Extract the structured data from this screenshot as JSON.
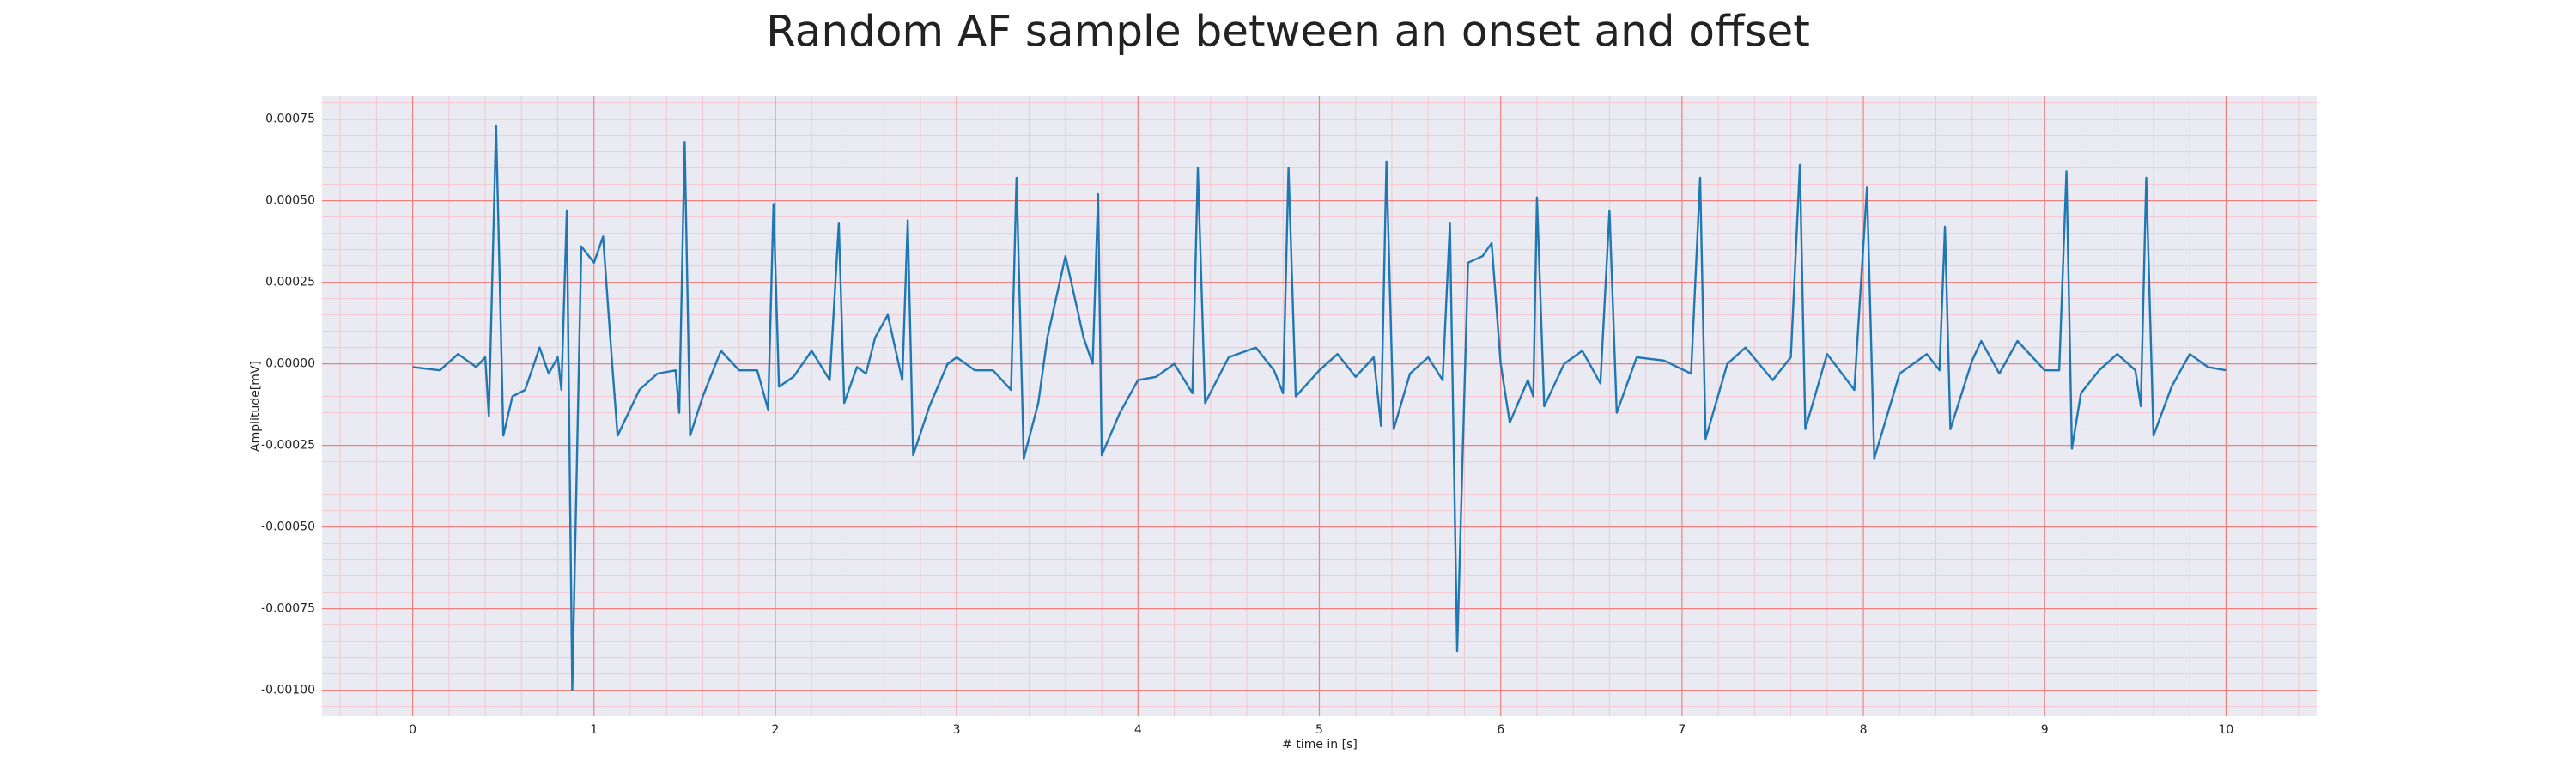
{
  "chart_data": {
    "type": "line",
    "title": "Random AF sample between an onset and offset",
    "xlabel": "# time in [s]",
    "ylabel": "Amplitude[mV]",
    "color": "#1f77b4",
    "background": "#eaeaf2",
    "grid": true,
    "grid_color": "#f08080",
    "minor_grid": true,
    "minor_grid_color": "#f5c6cf",
    "xlim": [
      -0.5,
      10.5
    ],
    "ylim": [
      -0.00108,
      0.00082
    ],
    "xticks": [
      0,
      1,
      2,
      3,
      4,
      5,
      6,
      7,
      8,
      9,
      10
    ],
    "yticks": [
      {
        "value": -0.001,
        "label": "-0.00100"
      },
      -0.00075,
      {
        "value": -0.0005,
        "label": "-0.00050"
      },
      -0.00025,
      {
        "value": 0,
        "label": "0.00000"
      },
      0.00025,
      {
        "value": 0.0005,
        "label": "0.00050"
      },
      0.00075
    ],
    "x": [
      0,
      0.15,
      0.25,
      0.35,
      0.4,
      0.42,
      0.46,
      0.5,
      0.55,
      0.62,
      0.7,
      0.75,
      0.8,
      0.82,
      0.85,
      0.88,
      0.93,
      1.0,
      1.05,
      1.1,
      1.13,
      1.25,
      1.35,
      1.45,
      1.47,
      1.5,
      1.53,
      1.6,
      1.7,
      1.8,
      1.9,
      1.96,
      1.99,
      2.02,
      2.1,
      2.2,
      2.3,
      2.35,
      2.38,
      2.45,
      2.5,
      2.55,
      2.62,
      2.7,
      2.73,
      2.76,
      2.85,
      2.95,
      3.0,
      3.1,
      3.2,
      3.3,
      3.33,
      3.37,
      3.45,
      3.5,
      3.6,
      3.7,
      3.75,
      3.78,
      3.8,
      3.9,
      4.0,
      4.1,
      4.2,
      4.3,
      4.33,
      4.37,
      4.5,
      4.65,
      4.75,
      4.8,
      4.83,
      4.87,
      5.0,
      5.1,
      5.2,
      5.3,
      5.34,
      5.37,
      5.41,
      5.5,
      5.6,
      5.68,
      5.72,
      5.76,
      5.82,
      5.9,
      5.95,
      6.0,
      6.05,
      6.15,
      6.18,
      6.2,
      6.24,
      6.35,
      6.45,
      6.55,
      6.6,
      6.64,
      6.75,
      6.9,
      7.05,
      7.1,
      7.13,
      7.25,
      7.35,
      7.5,
      7.6,
      7.65,
      7.68,
      7.8,
      7.95,
      8.02,
      8.06,
      8.2,
      8.35,
      8.42,
      8.45,
      8.48,
      8.6,
      8.65,
      8.75,
      8.85,
      9.0,
      9.08,
      9.12,
      9.15,
      9.2,
      9.3,
      9.4,
      9.5,
      9.53,
      9.56,
      9.6,
      9.7,
      9.8,
      9.9,
      10.0
    ],
    "values": [
      -1e-05,
      -2e-05,
      3e-05,
      -1e-05,
      2e-05,
      -0.00016,
      0.00073,
      -0.00022,
      -0.0001,
      -8e-05,
      5e-05,
      -3e-05,
      2e-05,
      -8e-05,
      0.00047,
      -0.001,
      0.00036,
      0.00031,
      0.00039,
      0.0,
      -0.00022,
      -8e-05,
      -3e-05,
      -2e-05,
      -0.00015,
      0.00068,
      -0.00022,
      -0.0001,
      4e-05,
      -2e-05,
      -2e-05,
      -0.00014,
      0.00049,
      -7e-05,
      -4e-05,
      4e-05,
      -5e-05,
      0.00043,
      -0.00012,
      -1e-05,
      -3e-05,
      8e-05,
      0.00015,
      -5e-05,
      0.00044,
      -0.00028,
      -0.00013,
      0.0,
      2e-05,
      -2e-05,
      -2e-05,
      -8e-05,
      0.00057,
      -0.00029,
      -0.00012,
      8e-05,
      0.00033,
      8e-05,
      0.0,
      0.00052,
      -0.00028,
      -0.00015,
      -5e-05,
      -4e-05,
      0.0,
      -9e-05,
      0.0006,
      -0.00012,
      2e-05,
      5e-05,
      -2e-05,
      -9e-05,
      0.0006,
      -0.0001,
      -2e-05,
      3e-05,
      -4e-05,
      2e-05,
      -0.00019,
      0.00062,
      -0.0002,
      -3e-05,
      2e-05,
      -5e-05,
      0.00043,
      -0.00088,
      0.00031,
      0.00033,
      0.00037,
      0.0,
      -0.00018,
      -5e-05,
      -0.0001,
      0.00051,
      -0.00013,
      0.0,
      4e-05,
      -6e-05,
      0.00047,
      -0.00015,
      2e-05,
      1e-05,
      -3e-05,
      0.00057,
      -0.00023,
      0.0,
      5e-05,
      -5e-05,
      2e-05,
      0.00061,
      -0.0002,
      3e-05,
      -8e-05,
      0.00054,
      -0.00029,
      -3e-05,
      3e-05,
      -2e-05,
      0.00042,
      -0.0002,
      1e-05,
      7e-05,
      -3e-05,
      7e-05,
      -2e-05,
      -2e-05,
      0.00059,
      -0.00026,
      -9e-05,
      -2e-05,
      3e-05,
      -2e-05,
      -0.00013,
      0.00057,
      -0.00022,
      -7e-05,
      3e-05,
      -1e-05,
      -2e-05
    ]
  }
}
